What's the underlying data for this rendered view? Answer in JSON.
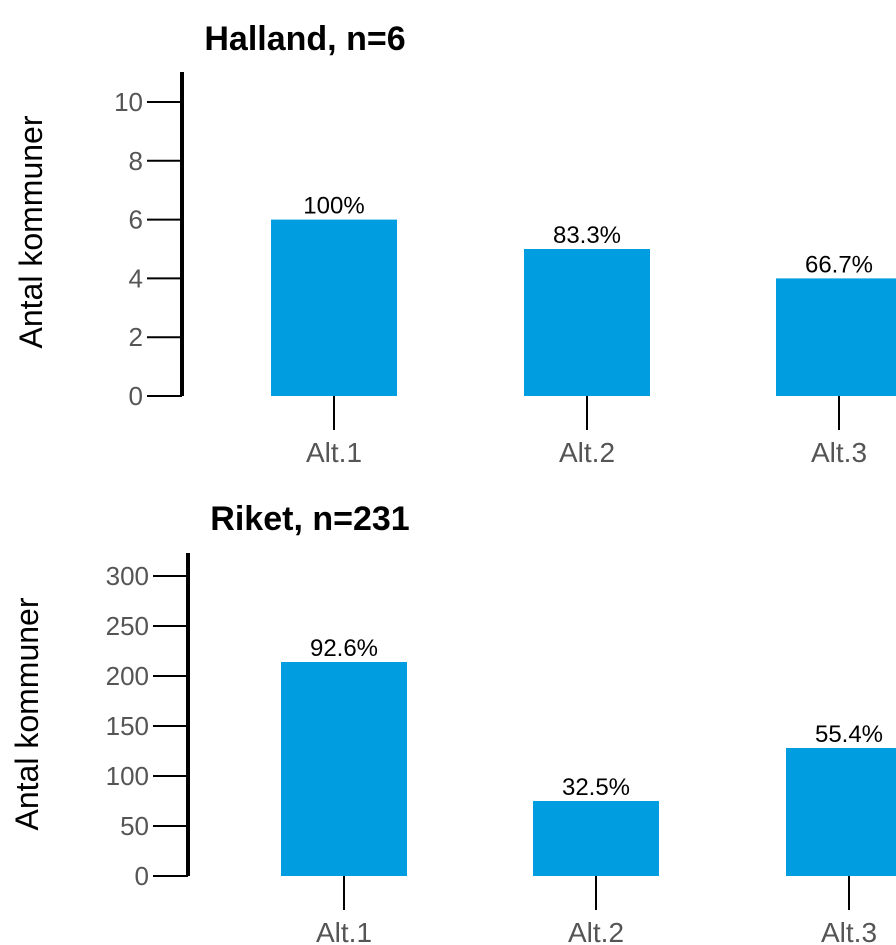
{
  "colors": {
    "bar": "#009ee0",
    "axis": "#000000",
    "tick": "#555555"
  },
  "chart_data": [
    {
      "type": "bar",
      "title": "Halland, n=6",
      "ylabel": "Antal kommuner",
      "ylim": [
        0,
        10
      ],
      "yticks": [
        0,
        2,
        4,
        6,
        8,
        10
      ],
      "categories": [
        "Alt.1",
        "Alt.2",
        "Alt.3"
      ],
      "values": [
        6,
        5,
        4
      ],
      "data_labels": [
        "100%",
        "83.3%",
        "66.7%"
      ]
    },
    {
      "type": "bar",
      "title": "Riket, n=231",
      "ylabel": "Antal kommuner",
      "ylim": [
        0,
        300
      ],
      "yticks": [
        0,
        50,
        100,
        150,
        200,
        250,
        300
      ],
      "categories": [
        "Alt.1",
        "Alt.2",
        "Alt.3"
      ],
      "values": [
        214,
        75,
        128
      ],
      "data_labels": [
        "92.6%",
        "32.5%",
        "55.4%"
      ]
    }
  ]
}
